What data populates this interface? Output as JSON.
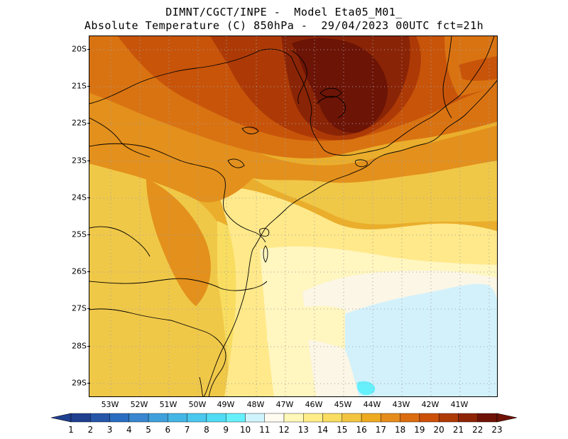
{
  "header": {
    "line1": "DIMNT/CGCT/INPE -  Model Eta05_M01_",
    "line2": "Absolute Temperature (C) 850hPa -  29/04/2023 00UTC fct=21h"
  },
  "axes": {
    "lat_labels": [
      "20S",
      "21S",
      "22S",
      "23S",
      "24S",
      "25S",
      "26S",
      "27S",
      "28S",
      "29S"
    ],
    "lon_labels": [
      "53W",
      "52W",
      "51W",
      "50W",
      "49W",
      "48W",
      "47W",
      "46W",
      "45W",
      "44W",
      "43W",
      "42W",
      "41W"
    ]
  },
  "colorbar": {
    "labels": [
      "1",
      "2",
      "3",
      "4",
      "5",
      "6",
      "7",
      "8",
      "9",
      "10",
      "11",
      "12",
      "13",
      "14",
      "15",
      "16",
      "17",
      "18",
      "19",
      "20",
      "21",
      "22",
      "23"
    ],
    "colors": [
      "#1f3f8f",
      "#2556a8",
      "#2a6cc0",
      "#3a86d0",
      "#3fa0dc",
      "#44b6e6",
      "#4ac8ee",
      "#4fdcf4",
      "#66f0fc",
      "#d0f4fc",
      "#fffbf0",
      "#fff8b8",
      "#ffee88",
      "#f8dd60",
      "#f2c440",
      "#eeaa20",
      "#e68c1c",
      "#dc6c10",
      "#cc5008",
      "#ae3a06",
      "#8e2406",
      "#6e1206"
    ]
  },
  "map": {
    "grid": "dotted",
    "colors": {
      "t12": "#fff6c0",
      "t13": "#ffe98a",
      "t14": "#f8dd60",
      "t15": "#f0c848",
      "t16": "#eaae2c",
      "t17": "#e3901c",
      "t18": "#d97312",
      "t19": "#c8540a",
      "t20": "#ad3a06",
      "t21": "#8a2406",
      "t22": "#6c1406",
      "t11": "#fbf6e6",
      "t10": "#d3f1fb",
      "t9": "#66f0fc"
    }
  }
}
